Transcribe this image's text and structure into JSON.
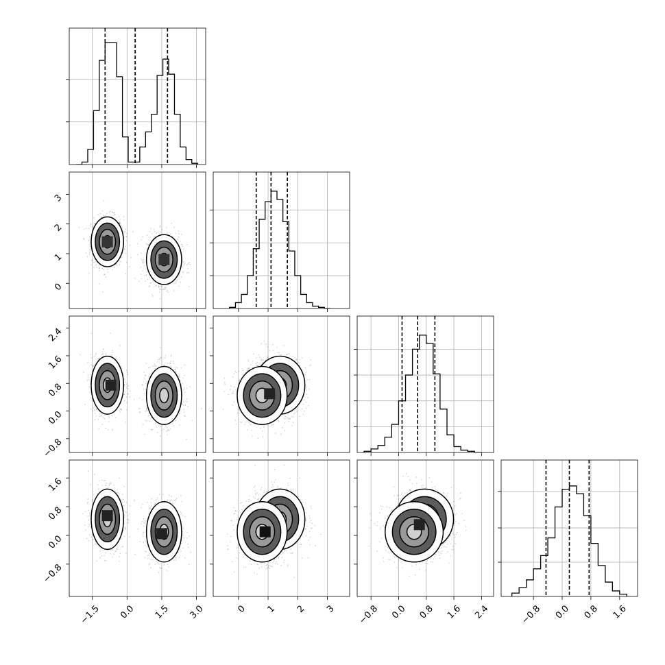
{
  "chart_data": {
    "type": "corner",
    "n_params": 4,
    "params": [
      {
        "name": "",
        "range": [
          -2.5,
          3.4
        ],
        "ticks": [
          -1.5,
          0.0,
          1.5,
          3.0
        ],
        "tick_labels": [
          "−1.5",
          "0.0",
          "1.5",
          "3.0"
        ],
        "quantiles": [
          -0.95,
          0.35,
          1.75
        ],
        "hist": {
          "edges": [
            -2.2,
            -1.95,
            -1.7,
            -1.45,
            -1.2,
            -0.95,
            -0.7,
            -0.45,
            -0.2,
            0.05,
            0.3,
            0.55,
            0.8,
            1.05,
            1.3,
            1.55,
            1.8,
            2.05,
            2.3,
            2.55,
            2.8,
            3.05
          ],
          "counts": [
            0.0,
            0.02,
            0.12,
            0.43,
            0.83,
            0.97,
            0.97,
            0.7,
            0.22,
            0.02,
            0.02,
            0.14,
            0.26,
            0.4,
            0.71,
            0.84,
            0.72,
            0.4,
            0.14,
            0.04,
            0.01
          ]
        }
      },
      {
        "name": "",
        "range": [
          -0.85,
          3.75
        ],
        "ticks": [
          0,
          1,
          2,
          3
        ],
        "tick_labels": [
          "0",
          "1",
          "2",
          "3"
        ],
        "quantiles": [
          0.6,
          1.1,
          1.65
        ],
        "hist": {
          "edges": [
            -0.3,
            -0.1,
            0.1,
            0.3,
            0.5,
            0.7,
            0.9,
            1.1,
            1.3,
            1.5,
            1.7,
            1.9,
            2.1,
            2.3,
            2.5,
            2.7,
            2.9,
            3.1
          ],
          "counts": [
            0.01,
            0.05,
            0.12,
            0.28,
            0.51,
            0.76,
            0.91,
            1.0,
            0.93,
            0.74,
            0.49,
            0.28,
            0.12,
            0.05,
            0.02,
            0.01,
            0.0
          ]
        }
      },
      {
        "name": "",
        "range": [
          -1.2,
          2.75
        ],
        "ticks": [
          -0.8,
          0.0,
          0.8,
          1.6,
          2.4
        ],
        "tick_labels": [
          "−0.8",
          "0.0",
          "0.8",
          "1.6",
          "2.4"
        ],
        "quantiles": [
          0.1,
          0.55,
          1.05
        ],
        "hist": {
          "edges": [
            -1.0,
            -0.8,
            -0.6,
            -0.4,
            -0.2,
            0.0,
            0.2,
            0.4,
            0.6,
            0.8,
            1.0,
            1.2,
            1.4,
            1.6,
            1.8,
            2.0,
            2.2,
            2.4
          ],
          "counts": [
            0.01,
            0.03,
            0.06,
            0.13,
            0.24,
            0.44,
            0.66,
            0.88,
            1.0,
            0.93,
            0.67,
            0.37,
            0.15,
            0.05,
            0.02,
            0.01,
            0.0
          ]
        }
      },
      {
        "name": "",
        "range": [
          -1.7,
          2.1
        ],
        "ticks": [
          -0.8,
          0.0,
          0.8,
          1.6
        ],
        "tick_labels": [
          "−0.8",
          "0.0",
          "0.8",
          "1.6"
        ],
        "quantiles": [
          -0.45,
          0.2,
          0.75
        ],
        "hist": {
          "edges": [
            -1.4,
            -1.2,
            -1.0,
            -0.8,
            -0.6,
            -0.4,
            -0.2,
            0.0,
            0.2,
            0.4,
            0.6,
            0.8,
            1.0,
            1.2,
            1.4,
            1.6,
            1.8
          ],
          "counts": [
            0.03,
            0.08,
            0.15,
            0.25,
            0.37,
            0.53,
            0.81,
            0.97,
            1.0,
            0.93,
            0.73,
            0.48,
            0.28,
            0.13,
            0.05,
            0.02
          ]
        }
      }
    ],
    "hist_peak_ratio": [
      0.92,
      0.86,
      0.86,
      0.81
    ],
    "hist_yticks": [
      [
        0.34,
        0.68
      ],
      [
        0.28,
        0.56,
        0.84
      ],
      [
        0.22,
        0.44,
        0.66,
        0.88
      ],
      [
        0.31,
        0.62,
        0.95
      ]
    ],
    "modes": [
      {
        "means": [
          -0.85,
          1.4,
          0.75,
          0.45
        ],
        "sds": [
          0.35,
          0.42,
          0.42,
          0.42
        ],
        "weight": 0.5
      },
      {
        "means": [
          1.6,
          0.8,
          0.45,
          0.1
        ],
        "sds": [
          0.38,
          0.42,
          0.42,
          0.42
        ],
        "weight": 0.5
      }
    ],
    "contour_levels_sigma": [
      0.5,
      1.0,
      1.5,
      2.0
    ],
    "band_shades": [
      "#5c5c5c",
      "#9a9a9a",
      "#d0d0d0"
    ],
    "density_squares": [
      {
        "row": 1,
        "col": 0,
        "x": -0.85,
        "y": 1.4,
        "shade": "#333333"
      },
      {
        "row": 1,
        "col": 0,
        "x": 1.6,
        "y": 0.8,
        "shade": "#333333"
      },
      {
        "row": 2,
        "col": 0,
        "x": -0.7,
        "y": 0.75,
        "shade": "#222222"
      },
      {
        "row": 2,
        "col": 1,
        "x": 1.05,
        "y": 0.5,
        "shade": "#222222"
      },
      {
        "row": 3,
        "col": 0,
        "x": -0.85,
        "y": 0.55,
        "shade": "#222222"
      },
      {
        "row": 3,
        "col": 0,
        "x": 1.5,
        "y": 0.05,
        "shade": "#222222"
      },
      {
        "row": 3,
        "col": 1,
        "x": 0.9,
        "y": 0.1,
        "shade": "#111111"
      },
      {
        "row": 3,
        "col": 2,
        "x": 0.6,
        "y": 0.3,
        "shade": "#222222"
      }
    ],
    "grid": true,
    "legend": "none",
    "title": "",
    "layout": "lower-triangle"
  }
}
